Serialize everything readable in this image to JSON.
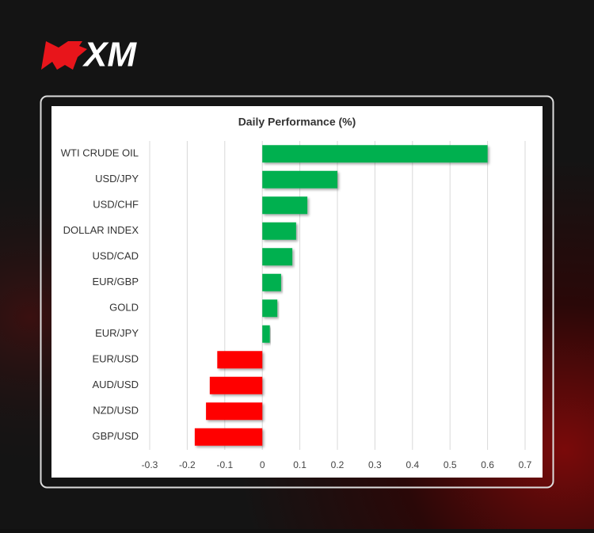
{
  "logo": "XM",
  "chart_data": {
    "type": "bar",
    "orientation": "horizontal",
    "title": "Daily Performance (%)",
    "categories": [
      "WTI CRUDE OIL",
      "USD/JPY",
      "USD/CHF",
      "DOLLAR INDEX",
      "USD/CAD",
      "EUR/GBP",
      "GOLD",
      "EUR/JPY",
      "EUR/USD",
      "AUD/USD",
      "NZD/USD",
      "GBP/USD"
    ],
    "values": [
      0.6,
      0.2,
      0.12,
      0.09,
      0.08,
      0.05,
      0.04,
      0.02,
      -0.12,
      -0.14,
      -0.15,
      -0.18
    ],
    "positive_color": "#00b050",
    "negative_color": "#ff0000",
    "xlim": [
      -0.3,
      0.7
    ],
    "xticks": [
      -0.3,
      -0.2,
      -0.1,
      0,
      0.1,
      0.2,
      0.3,
      0.4,
      0.5,
      0.6,
      0.7
    ],
    "grid": true
  }
}
